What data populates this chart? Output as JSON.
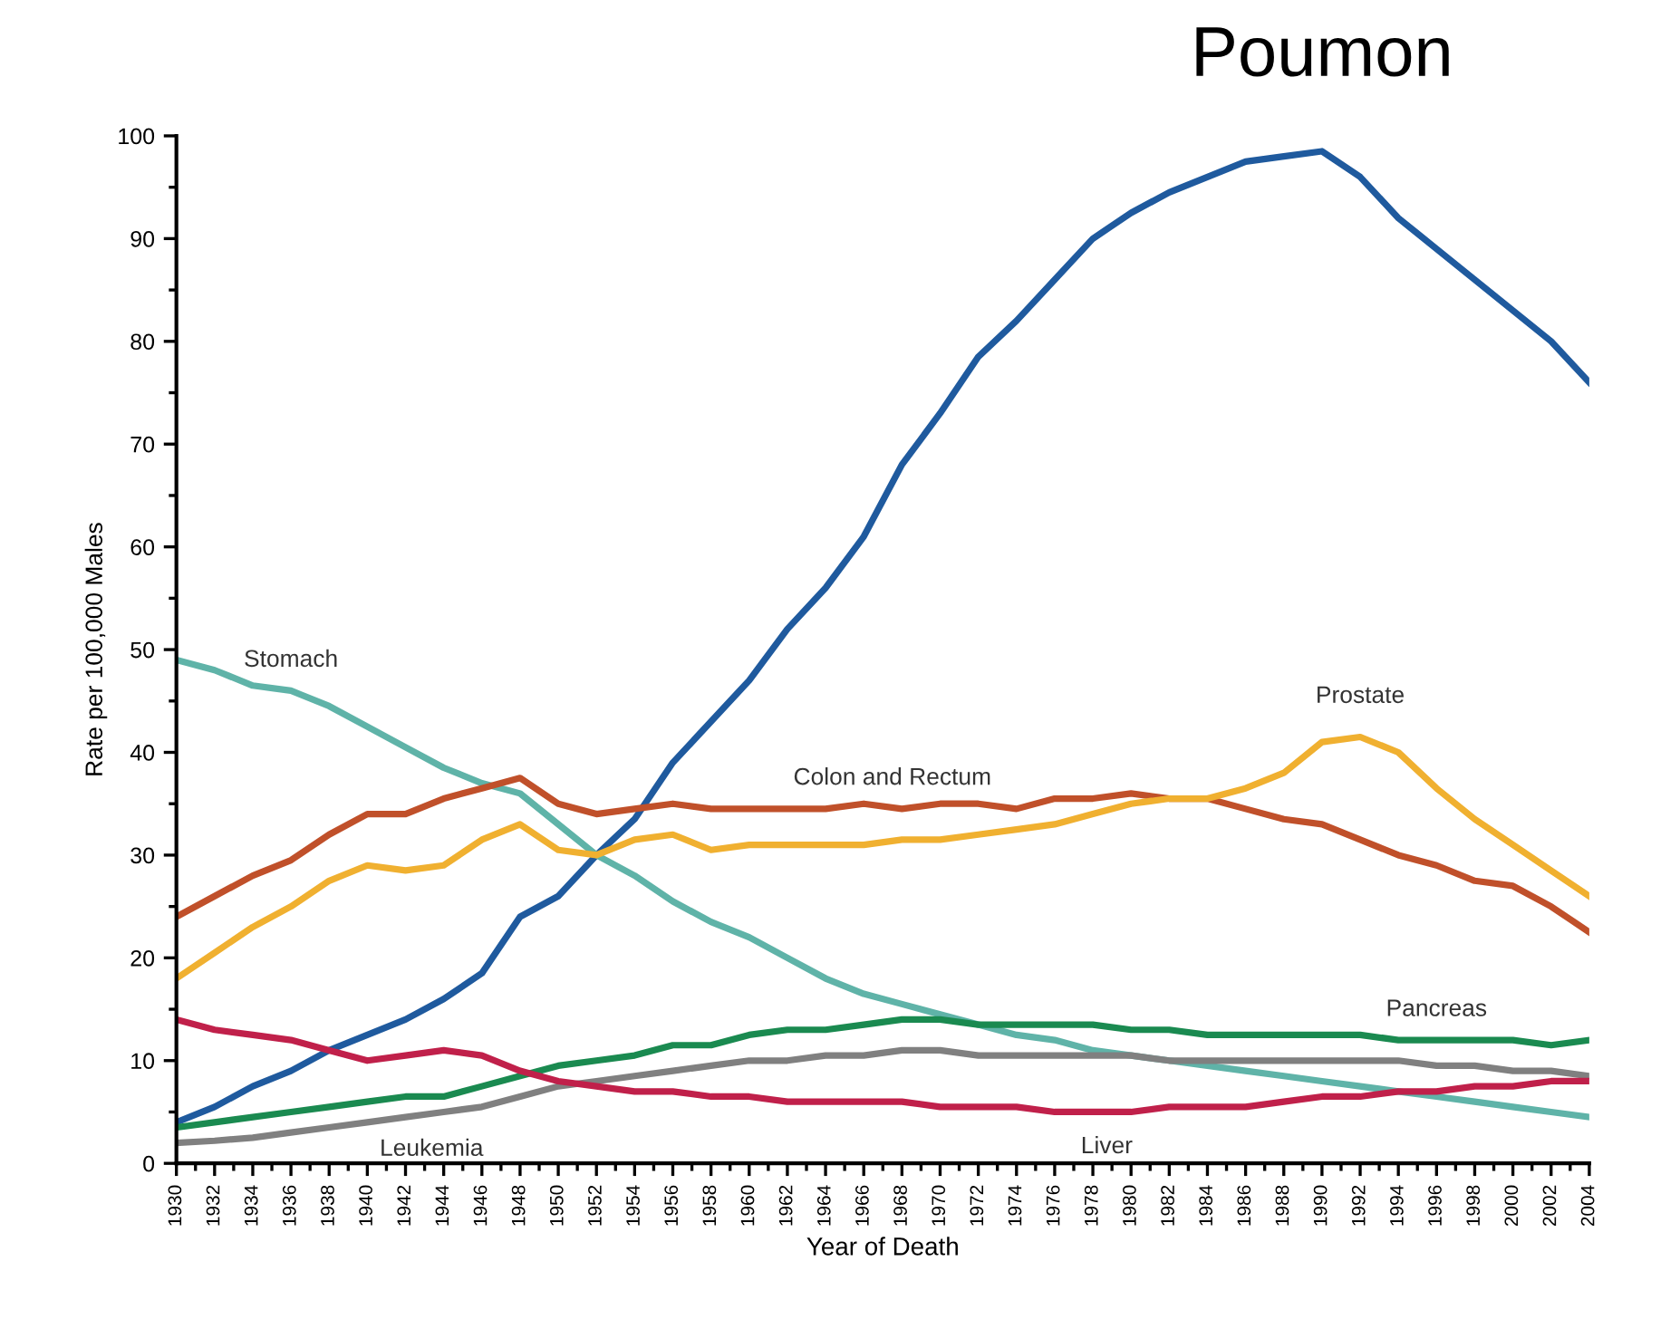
{
  "chart_data": {
    "type": "line",
    "xlabel": "Year of Death",
    "ylabel": "Rate per 100,000 Males",
    "x": [
      1930,
      1932,
      1934,
      1936,
      1938,
      1940,
      1942,
      1944,
      1946,
      1948,
      1950,
      1952,
      1954,
      1956,
      1958,
      1960,
      1962,
      1964,
      1966,
      1968,
      1970,
      1972,
      1974,
      1976,
      1978,
      1980,
      1982,
      1984,
      1986,
      1988,
      1990,
      1992,
      1994,
      1996,
      1998,
      2000,
      2002,
      2004
    ],
    "xlim": [
      1930,
      2004
    ],
    "xticks": [
      1930,
      1932,
      1934,
      1936,
      1938,
      1940,
      1942,
      1944,
      1946,
      1948,
      1950,
      1952,
      1954,
      1956,
      1958,
      1960,
      1962,
      1964,
      1966,
      1968,
      1970,
      1972,
      1974,
      1976,
      1978,
      1980,
      1982,
      1984,
      1986,
      1988,
      1990,
      1992,
      1994,
      1996,
      1998,
      2000,
      2002,
      2004
    ],
    "ylim": [
      0,
      100
    ],
    "yticks": [
      0,
      10,
      20,
      30,
      40,
      50,
      60,
      70,
      80,
      90,
      100
    ],
    "grid": false,
    "legend": false,
    "marker": "none",
    "line_style": "solid",
    "series": [
      {
        "name": "Poumon",
        "color": "#1f5a9e",
        "values": [
          4,
          5.5,
          7.5,
          9,
          11,
          12.5,
          14,
          16,
          18.5,
          24,
          26,
          30,
          33.5,
          39,
          43,
          47,
          52,
          56,
          61,
          68,
          73,
          78.5,
          82,
          86,
          90,
          92.5,
          94.5,
          96,
          97.5,
          98,
          98.5,
          96,
          92,
          89,
          86,
          83,
          80,
          76
        ]
      },
      {
        "name": "Stomach",
        "color": "#5fb3a8",
        "values": [
          49,
          48,
          46.5,
          46,
          44.5,
          42.5,
          40.5,
          38.5,
          37,
          36,
          33,
          30,
          28,
          25.5,
          23.5,
          22,
          20,
          18,
          16.5,
          15.5,
          14.5,
          13.5,
          12.5,
          12,
          11,
          10.5,
          10,
          9.5,
          9,
          8.5,
          8,
          7.5,
          7,
          6.5,
          6,
          5.5,
          5,
          4.5
        ]
      },
      {
        "name": "Colon and Rectum",
        "color": "#c0502a",
        "values": [
          24,
          26,
          28,
          29.5,
          32,
          34,
          34,
          35.5,
          36.5,
          37.5,
          35,
          34,
          34.5,
          35,
          34.5,
          34.5,
          34.5,
          34.5,
          35,
          34.5,
          35,
          35,
          34.5,
          35.5,
          35.5,
          36,
          35.5,
          35.5,
          34.5,
          33.5,
          33,
          31.5,
          30,
          29,
          27.5,
          27,
          25,
          22.5
        ]
      },
      {
        "name": "Prostate",
        "color": "#f0b030",
        "values": [
          18,
          20.5,
          23,
          25,
          27.5,
          29,
          28.5,
          29,
          31.5,
          33,
          30.5,
          30,
          31.5,
          32,
          30.5,
          31,
          31,
          31,
          31,
          31.5,
          31.5,
          32,
          32.5,
          33,
          34,
          35,
          35.5,
          35.5,
          36.5,
          38,
          41,
          41.5,
          40,
          36.5,
          33.5,
          31,
          28.5,
          26
        ]
      },
      {
        "name": "Pancreas",
        "color": "#1a8a50",
        "values": [
          3.5,
          4,
          4.5,
          5,
          5.5,
          6,
          6.5,
          6.5,
          7.5,
          8.5,
          9.5,
          10,
          10.5,
          11.5,
          11.5,
          12.5,
          13,
          13,
          13.5,
          14,
          14,
          13.5,
          13.5,
          13.5,
          13.5,
          13,
          13,
          12.5,
          12.5,
          12.5,
          12.5,
          12.5,
          12,
          12,
          12,
          12,
          11.5,
          12
        ]
      },
      {
        "name": "Leukemia",
        "color": "#808080",
        "values": [
          2,
          2.2,
          2.5,
          3,
          3.5,
          4,
          4.5,
          5,
          5.5,
          6.5,
          7.5,
          8,
          8.5,
          9,
          9.5,
          10,
          10,
          10.5,
          10.5,
          11,
          11,
          10.5,
          10.5,
          10.5,
          10.5,
          10.5,
          10,
          10,
          10,
          10,
          10,
          10,
          10,
          9.5,
          9.5,
          9,
          9,
          8.5
        ]
      },
      {
        "name": "Liver",
        "color": "#c0204a",
        "values": [
          14,
          13,
          12.5,
          12,
          11,
          10,
          10.5,
          11,
          10.5,
          9,
          8,
          7.5,
          7,
          7,
          6.5,
          6.5,
          6,
          6,
          6,
          6,
          5.5,
          5.5,
          5.5,
          5,
          5,
          5,
          5.5,
          5.5,
          5.5,
          6,
          6.5,
          6.5,
          7,
          7,
          7.5,
          7.5,
          8,
          8
        ]
      }
    ]
  }
}
